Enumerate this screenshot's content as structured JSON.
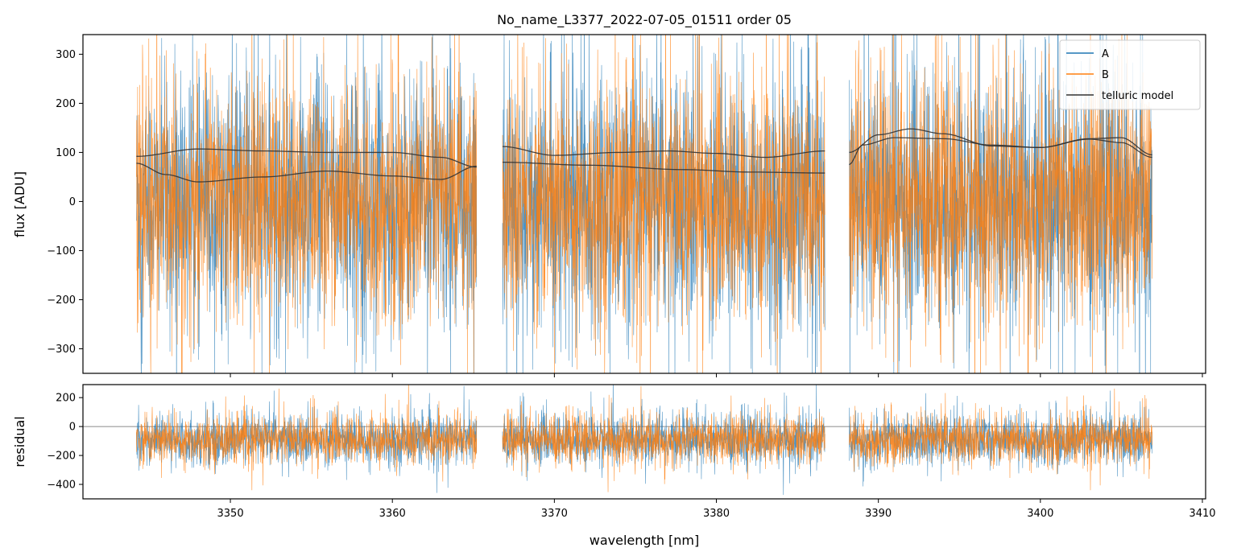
{
  "chart_data": [
    {
      "type": "line",
      "title": "No_name_L3377_2022-07-05_01511  order 05",
      "xlabel": "",
      "ylabel": "flux [ADU]",
      "xlim": [
        3340.9,
        3410.2
      ],
      "ylim": [
        -350,
        340
      ],
      "yticks": [
        -300,
        -200,
        -100,
        0,
        100,
        200,
        300
      ],
      "xticks": [
        3350,
        3360,
        3370,
        3380,
        3390,
        3400,
        3410
      ],
      "legend": {
        "placement": "top-right",
        "entries": [
          "A",
          "B",
          "telluric model"
        ]
      },
      "segments": [
        [
          3344.2,
          3365.2
        ],
        [
          3366.8,
          3386.7
        ],
        [
          3388.2,
          3406.9
        ]
      ],
      "series": [
        {
          "name": "A",
          "color": "#1f77b4",
          "kind": "noisy",
          "mean": 0,
          "spread": 300
        },
        {
          "name": "B",
          "color": "#ff7f0e",
          "kind": "noisy",
          "mean": 0,
          "spread": 280
        },
        {
          "name": "telluric model",
          "color": "#333333",
          "kind": "curves",
          "curves": [
            {
              "x": [
                3344.2,
                3348,
                3352,
                3356,
                3360,
                3363,
                3365.2
              ],
              "y": [
                92,
                107,
                103,
                100,
                100,
                90,
                70
              ]
            },
            {
              "x": [
                3344.2,
                3346,
                3348,
                3352,
                3356,
                3360,
                3363,
                3365.2
              ],
              "y": [
                78,
                55,
                40,
                50,
                62,
                52,
                45,
                72
              ]
            },
            {
              "x": [
                3366.8,
                3370,
                3374,
                3377,
                3380,
                3383,
                3386.7
              ],
              "y": [
                112,
                94,
                100,
                103,
                98,
                90,
                103
              ]
            },
            {
              "x": [
                3366.8,
                3372,
                3378,
                3382,
                3386.7
              ],
              "y": [
                80,
                74,
                65,
                60,
                58
              ]
            },
            {
              "x": [
                3388.2,
                3390,
                3392,
                3394,
                3397,
                3400,
                3403,
                3405,
                3406.9
              ],
              "y": [
                100,
                136,
                148,
                138,
                113,
                110,
                127,
                120,
                90
              ]
            },
            {
              "x": [
                3388.2,
                3389,
                3391,
                3394,
                3397,
                3400,
                3403,
                3405,
                3406.9
              ],
              "y": [
                75,
                115,
                130,
                128,
                115,
                110,
                128,
                130,
                95
              ]
            }
          ]
        }
      ]
    },
    {
      "type": "line",
      "title": "",
      "xlabel": "wavelength [nm]",
      "ylabel": "residual",
      "xlim": [
        3340.9,
        3410.2
      ],
      "ylim": [
        -500,
        290
      ],
      "yticks": [
        -400,
        -200,
        0,
        200
      ],
      "xticks": [
        3350,
        3360,
        3370,
        3380,
        3390,
        3400,
        3410
      ],
      "zero_line": true,
      "series": [
        {
          "name": "A",
          "color": "#1f77b4",
          "kind": "noisy",
          "mean": -90,
          "spread": 200
        },
        {
          "name": "B",
          "color": "#ff7f0e",
          "kind": "noisy",
          "mean": -90,
          "spread": 190
        }
      ]
    }
  ]
}
